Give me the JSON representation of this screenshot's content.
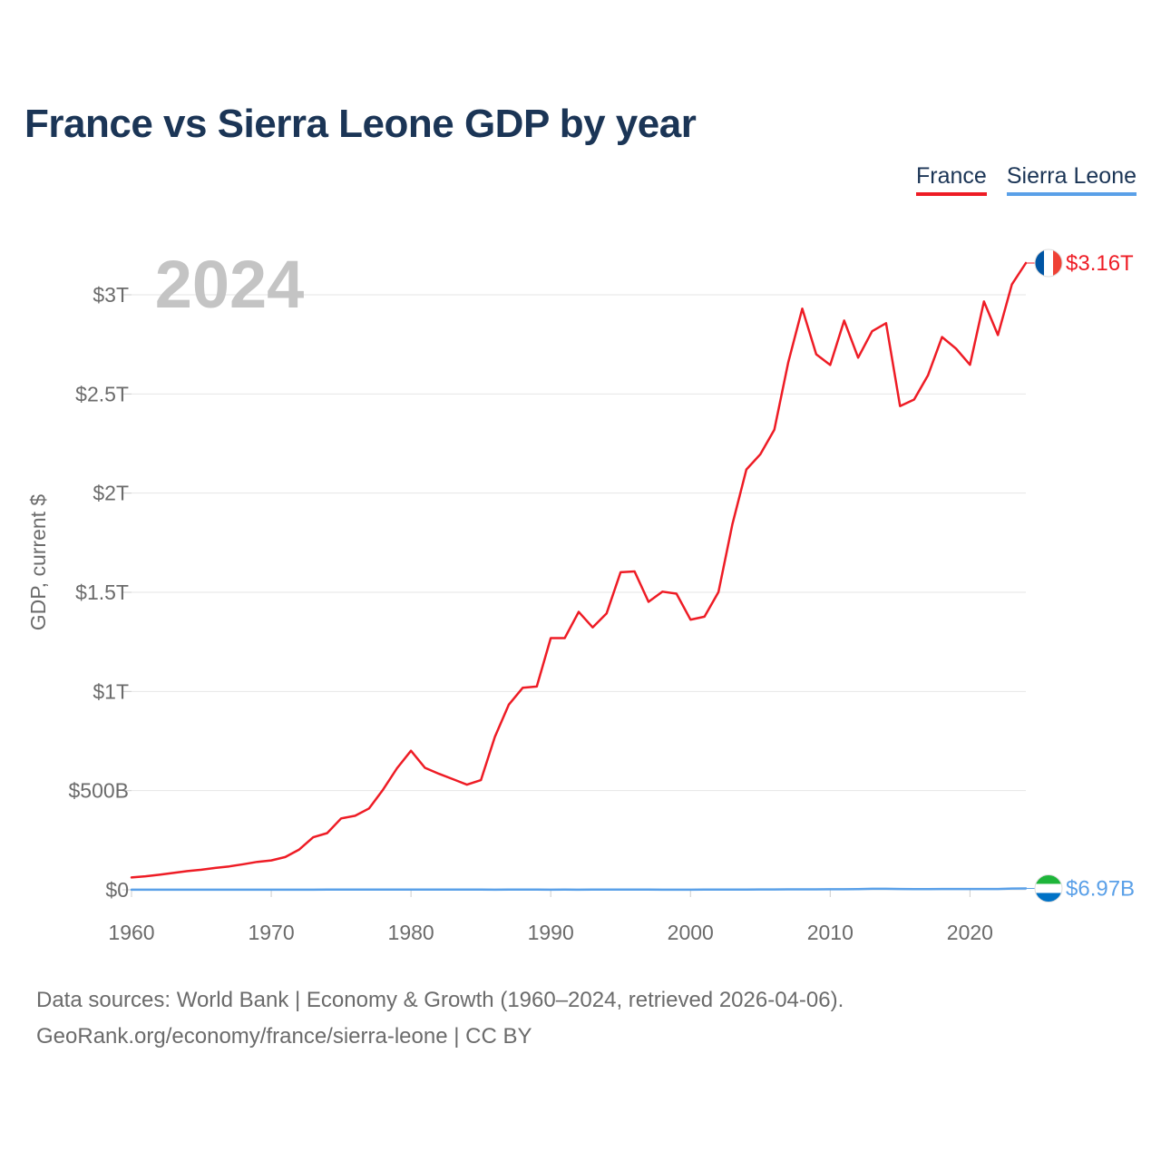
{
  "title": "France vs Sierra Leone GDP by year",
  "legend": {
    "france": "France",
    "sierra": "Sierra Leone"
  },
  "footer": {
    "line1": "Data sources: World Bank | Economy & Growth (1960–2024, retrieved 2026-04-06).",
    "line2": "GeoRank.org/economy/france/sierra-leone | CC BY"
  },
  "colors": {
    "france": "#ee1c25",
    "sierra": "#5aa0e8",
    "title": "#1b3556",
    "grid": "#e6e6e6",
    "text": "#6b6b6b",
    "watermark": "#c4c4c4"
  },
  "chart_data": {
    "type": "line",
    "title": "France vs Sierra Leone GDP by year",
    "xlabel": "",
    "ylabel": "GDP, current $",
    "year_label": "2024",
    "xlim": [
      1960,
      2024
    ],
    "ylim": [
      0,
      3000000000000
    ],
    "x_ticks": [
      1960,
      1970,
      1980,
      1990,
      2000,
      2010,
      2020
    ],
    "x_tick_labels": [
      "1960",
      "1970",
      "1980",
      "1990",
      "2000",
      "2010",
      "2020"
    ],
    "y_ticks": [
      0,
      500000000000,
      1000000000000,
      1500000000000,
      2000000000000,
      2500000000000,
      3000000000000
    ],
    "y_tick_labels": [
      "$0",
      "$500B",
      "$1T",
      "$1.5T",
      "$2T",
      "$2.5T",
      "$3T"
    ],
    "grid": true,
    "legend_position": "top-right",
    "x": [
      1960,
      1961,
      1962,
      1963,
      1964,
      1965,
      1966,
      1967,
      1968,
      1969,
      1970,
      1971,
      1972,
      1973,
      1974,
      1975,
      1976,
      1977,
      1978,
      1979,
      1980,
      1981,
      1982,
      1983,
      1984,
      1985,
      1986,
      1987,
      1988,
      1989,
      1990,
      1991,
      1992,
      1993,
      1994,
      1995,
      1996,
      1997,
      1998,
      1999,
      2000,
      2001,
      2002,
      2003,
      2004,
      2005,
      2006,
      2007,
      2008,
      2009,
      2010,
      2011,
      2012,
      2013,
      2014,
      2015,
      2016,
      2017,
      2018,
      2019,
      2020,
      2021,
      2022,
      2023,
      2024
    ],
    "series": [
      {
        "name": "France",
        "color": "#ee1c25",
        "end_label": "$3.16T",
        "values": [
          62000000000,
          68000000000,
          76000000000,
          85000000000,
          94000000000,
          101000000000,
          110000000000,
          118000000000,
          129000000000,
          141000000000,
          148000000000,
          165000000000,
          203000000000,
          265000000000,
          286000000000,
          360000000000,
          373000000000,
          410000000000,
          505000000000,
          613000000000,
          701000000000,
          615000000000,
          585000000000,
          558000000000,
          530000000000,
          553000000000,
          771000000000,
          934000000000,
          1019000000000,
          1025000000000,
          1269000000000,
          1269000000000,
          1401000000000,
          1323000000000,
          1394000000000,
          1601000000000,
          1605000000000,
          1452000000000,
          1503000000000,
          1493000000000,
          1362000000000,
          1377000000000,
          1501000000000,
          1844000000000,
          2119000000000,
          2196000000000,
          2320000000000,
          2660000000000,
          2930000000000,
          2700000000000,
          2646000000000,
          2870000000000,
          2683000000000,
          2816000000000,
          2857000000000,
          2439000000000,
          2472000000000,
          2595000000000,
          2787000000000,
          2729000000000,
          2647000000000,
          2966000000000,
          2797000000000,
          3052000000000,
          3160000000000
        ]
      },
      {
        "name": "Sierra Leone",
        "color": "#5aa0e8",
        "end_label": "$6.97B",
        "values": [
          320000000,
          340000000,
          350000000,
          370000000,
          400000000,
          430000000,
          450000000,
          470000000,
          500000000,
          560000000,
          560000000,
          540000000,
          590000000,
          670000000,
          760000000,
          840000000,
          800000000,
          950000000,
          1100000000,
          1200000000,
          1100000000,
          1150000000,
          1250000000,
          1140000000,
          1000000000,
          870000000,
          580000000,
          1200000000,
          1100000000,
          1000000000,
          650000000,
          780000000,
          670000000,
          770000000,
          870000000,
          870000000,
          940000000,
          850000000,
          670000000,
          670000000,
          640000000,
          1000000000,
          1250000000,
          1370000000,
          1430000000,
          1650000000,
          1880000000,
          2150000000,
          2510000000,
          2450000000,
          2580000000,
          2940000000,
          3800000000,
          4920000000,
          5020000000,
          4220000000,
          3670000000,
          3740000000,
          4090000000,
          4120000000,
          4060000000,
          4240000000,
          4090000000,
          6410000000,
          6970000000
        ]
      }
    ]
  }
}
